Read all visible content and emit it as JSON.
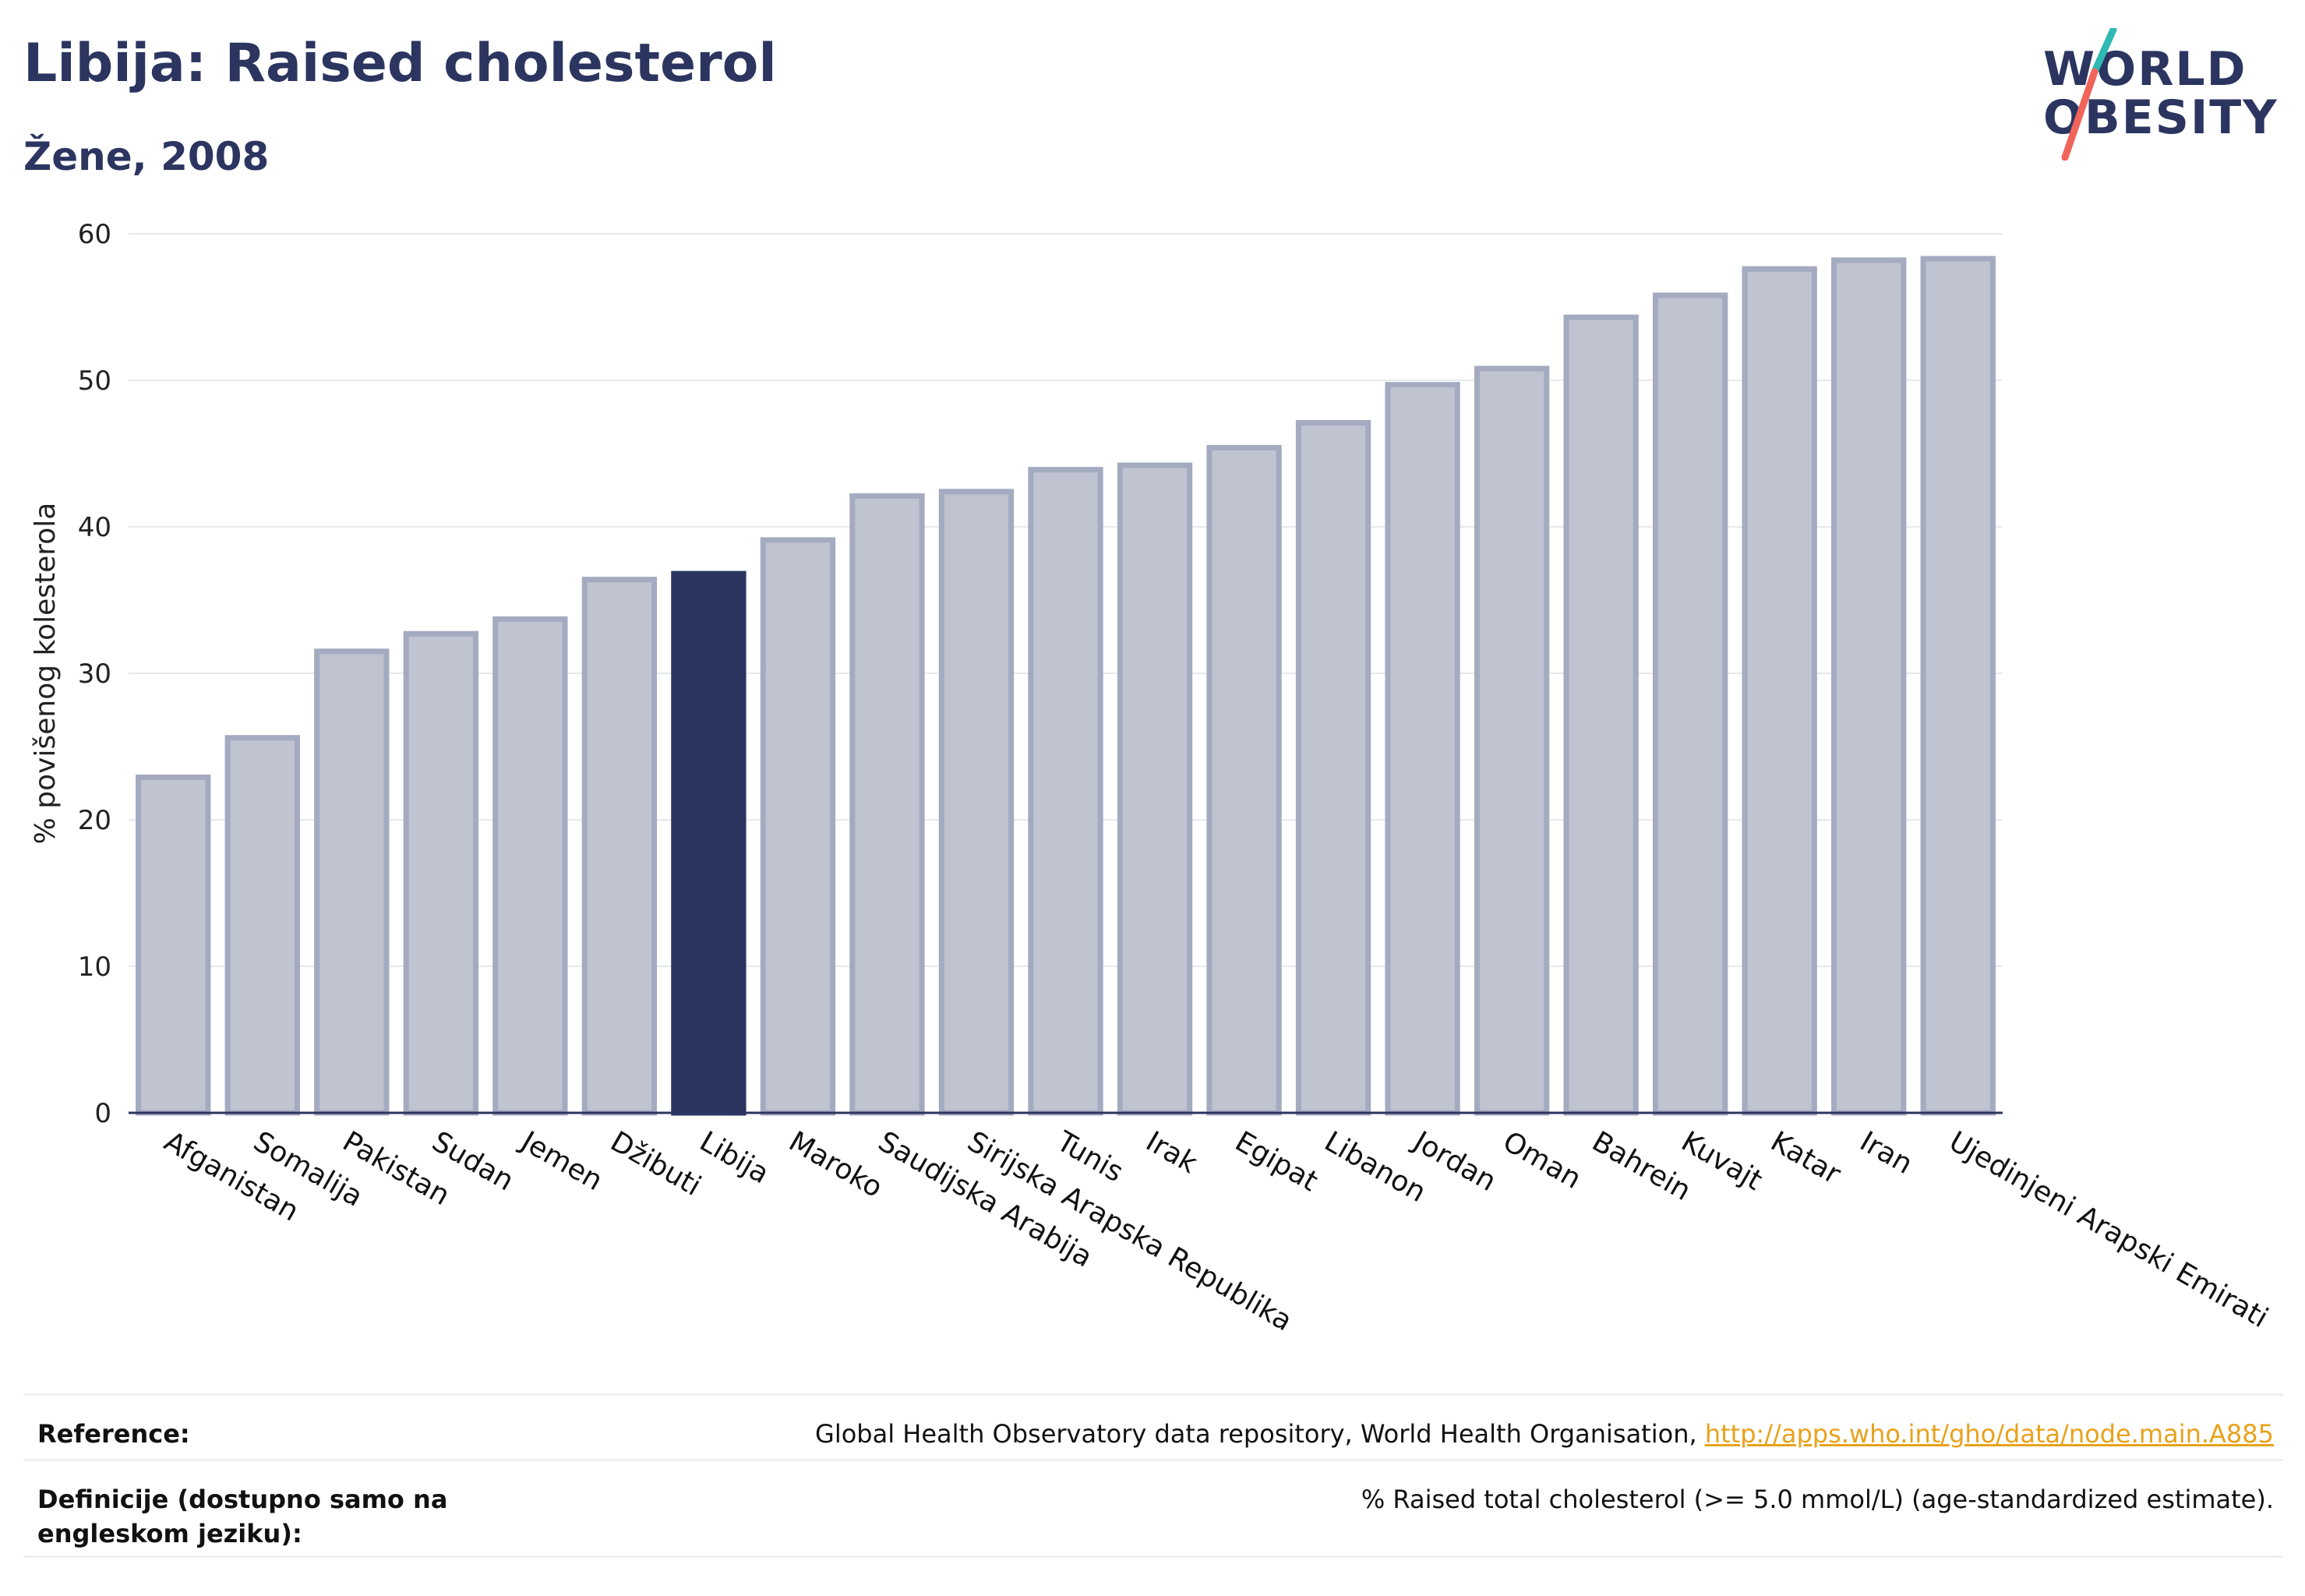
{
  "header": {
    "title": "Libija: Raised cholesterol",
    "subtitle": "Žene, 2008"
  },
  "logo": {
    "line1": "WORLD",
    "line2": "OBESITY",
    "colors": {
      "text": "#2b3560",
      "slash_top": "#2fb9b4",
      "slash_bottom": "#f0645a"
    }
  },
  "chart_data": {
    "type": "bar",
    "ylabel": "% povišenog kolesterola",
    "ylim": [
      0,
      60
    ],
    "yticks": [
      0,
      10,
      20,
      30,
      40,
      50,
      60
    ],
    "grid": true,
    "highlight": "Libija",
    "colors": {
      "bar": "#c0c3d0",
      "bar_stroke": "#a4aabf",
      "highlight": "#2b3560",
      "axis": "#2b3560",
      "grid": "#e8e8ee"
    },
    "categories": [
      "Afganistan",
      "Somalija",
      "Pakistan",
      "Sudan",
      "Jemen",
      "Džibuti",
      "Libija",
      "Maroko",
      "Saudijska Arabija",
      "Sirijska Arapska Republika",
      "Tunis",
      "Irak",
      "Egipat",
      "Libanon",
      "Jordan",
      "Oman",
      "Bahrein",
      "Kuvajt",
      "Katar",
      "Iran",
      "Ujedinjeni Arapski Emirati"
    ],
    "values": [
      22.9,
      25.6,
      31.5,
      32.7,
      33.7,
      36.4,
      36.8,
      39.1,
      42.1,
      42.4,
      43.9,
      44.2,
      45.4,
      47.1,
      49.7,
      50.8,
      54.3,
      55.8,
      57.6,
      58.2,
      58.3
    ]
  },
  "footer": {
    "reference_label": "Reference:",
    "reference_text": "Global Health Observatory data repository, World Health Organisation,",
    "reference_link": "http://apps.who.int/gho/data/node.main.A885",
    "definition_label": "Definicije (dostupno samo na engleskom jeziku):",
    "definition_text": "% Raised total cholesterol (>= 5.0 mmol/L) (age-standardized estimate)."
  }
}
